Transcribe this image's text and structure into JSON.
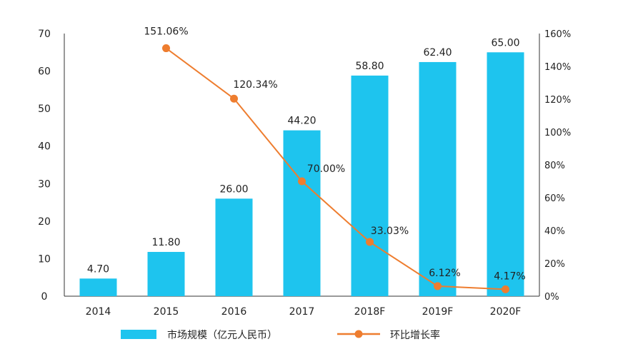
{
  "chart_data": {
    "type": "bar+line",
    "categories": [
      "2014",
      "2015",
      "2016",
      "2017",
      "2018F",
      "2019F",
      "2020F"
    ],
    "series": [
      {
        "name": "市场规模（亿元人民币）",
        "type": "bar",
        "axis": "left",
        "color": "#1EC4EE",
        "values": [
          4.7,
          11.8,
          26.0,
          44.2,
          58.8,
          62.4,
          65.0
        ],
        "labels": [
          "4.70",
          "11.80",
          "26.00",
          "44.20",
          "58.80",
          "62.40",
          "65.00"
        ]
      },
      {
        "name": "环比增长率",
        "type": "line",
        "axis": "right",
        "color": "#EE7D2F",
        "values": [
          null,
          151.06,
          120.34,
          70.0,
          33.03,
          6.12,
          4.17
        ],
        "labels": [
          "",
          "151.06%",
          "120.34%",
          "70.00%",
          "33.03%",
          "6.12%",
          "4.17%"
        ]
      }
    ],
    "y_left": {
      "ylim": [
        0,
        70
      ],
      "ticks": [
        0,
        10,
        20,
        30,
        40,
        50,
        60,
        70
      ]
    },
    "y_right": {
      "ylim": [
        0,
        160
      ],
      "ticks": [
        0,
        20,
        40,
        60,
        80,
        100,
        120,
        140,
        160
      ],
      "tick_labels": [
        "0%",
        "20%",
        "40%",
        "60%",
        "80%",
        "100%",
        "120%",
        "140%",
        "160%"
      ]
    },
    "title": "",
    "xlabel": "",
    "grid": false,
    "legend_position": "bottom"
  }
}
